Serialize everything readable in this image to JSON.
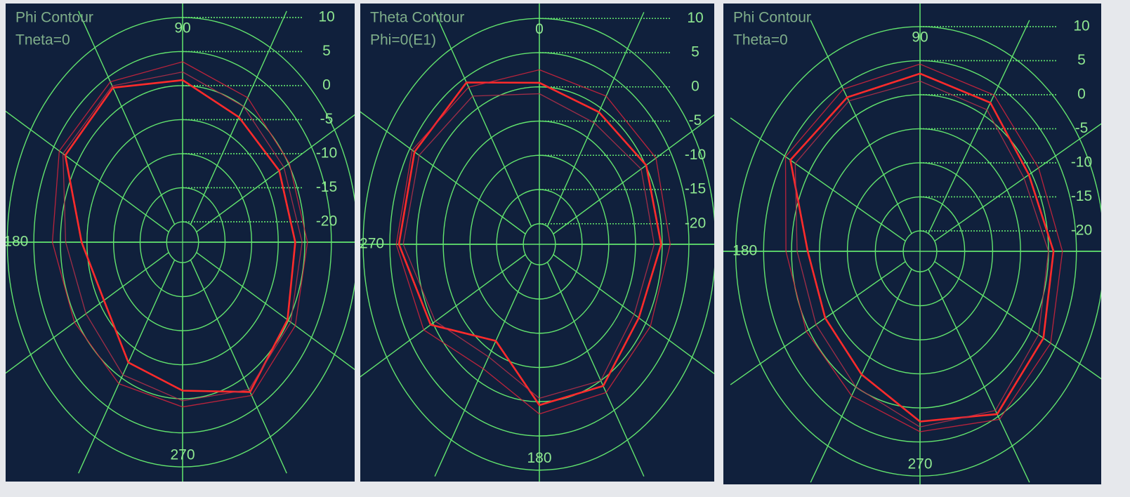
{
  "chart_data": [
    {
      "type": "polar",
      "title": "Phi Contour",
      "subtitle": "Tneta=0",
      "theta_zero": "right",
      "theta_direction": "counterclockwise",
      "theta": [
        0,
        30,
        60,
        90,
        120,
        150,
        180,
        210,
        240,
        270,
        300,
        330
      ],
      "thetaticks": [
        90,
        180,
        270
      ],
      "rlim": [
        -23,
        10
      ],
      "rticks": [
        10,
        5,
        0,
        -5,
        -10,
        -15,
        -20
      ],
      "grid": true,
      "series": [
        {
          "color": "#ff2b2b",
          "values": [
            -1.8,
            -2,
            -1.8,
            0.8,
            3.2,
            2.5,
            -4,
            -5.9,
            -2.6,
            -1.2,
            2.4,
            -0.2
          ]
        },
        {
          "color": "#d8243c",
          "values": [
            0.5,
            0.2,
            1.5,
            3.5,
            4.2,
            3.8,
            1.5,
            0.5,
            1,
            1.2,
            3,
            1.5
          ]
        },
        {
          "color": "#b8304a",
          "values": [
            -0.5,
            -1,
            0,
            2,
            3.5,
            3,
            -1,
            -2,
            -0.5,
            0.3,
            2,
            0.5
          ]
        }
      ]
    },
    {
      "type": "polar",
      "title": "Theta Contour",
      "subtitle": "Phi=0(E1)",
      "theta_zero": "top",
      "theta_direction": "clockwise",
      "theta": [
        0,
        30,
        60,
        90,
        120,
        150,
        180,
        210,
        240,
        270,
        300,
        330
      ],
      "thetaticks": [
        0,
        270,
        180
      ],
      "rlim": [
        -23,
        10
      ],
      "rticks": [
        10,
        5,
        0,
        -5,
        -10,
        -15,
        -20
      ],
      "grid": true,
      "series": [
        {
          "color": "#ff2b2b",
          "values": [
            0.6,
            -0.7,
            0.1,
            -0.2,
            -1.5,
            0.9,
            0.5,
            -6.7,
            0.5,
            3.3,
            4,
            4.3
          ]
        },
        {
          "color": "#d8243c",
          "values": [
            2.5,
            2,
            2.2,
            1.5,
            1,
            2,
            1.8,
            -2,
            2,
            3.8,
            4.5,
            3.5
          ]
        },
        {
          "color": "#b8304a",
          "values": [
            -1,
            -2.5,
            -1,
            -1.5,
            -2.5,
            0,
            -0.5,
            -4,
            -0.5,
            2.5,
            3,
            2
          ]
        }
      ]
    },
    {
      "type": "polar",
      "title": "Phi Contour",
      "subtitle": "Theta=0",
      "theta_zero": "right",
      "theta_direction": "counterclockwise",
      "theta": [
        0,
        30,
        60,
        90,
        120,
        150,
        180,
        210,
        240,
        270,
        300,
        330
      ],
      "thetaticks": [
        90,
        180,
        270
      ],
      "rlim": [
        -23,
        10
      ],
      "rticks": [
        10,
        5,
        0,
        -5,
        -10,
        -15,
        -20
      ],
      "grid": true,
      "series": [
        {
          "color": "#ff2b2b",
          "values": [
            0.9,
            -0.5,
            2.2,
            3.1,
            3.1,
            3.8,
            -2.9,
            -3.4,
            -2.1,
            2,
            4.6,
            2.5
          ]
        },
        {
          "color": "#d8243c",
          "values": [
            2.5,
            1.5,
            3.5,
            4.5,
            4.5,
            4.8,
            1,
            0.5,
            1.5,
            3.5,
            5.5,
            4
          ]
        },
        {
          "color": "#b8304a",
          "values": [
            0,
            -1.5,
            1,
            2,
            2.5,
            2.8,
            -1,
            -1.5,
            0,
            2.8,
            4,
            1.5
          ]
        }
      ]
    }
  ]
}
